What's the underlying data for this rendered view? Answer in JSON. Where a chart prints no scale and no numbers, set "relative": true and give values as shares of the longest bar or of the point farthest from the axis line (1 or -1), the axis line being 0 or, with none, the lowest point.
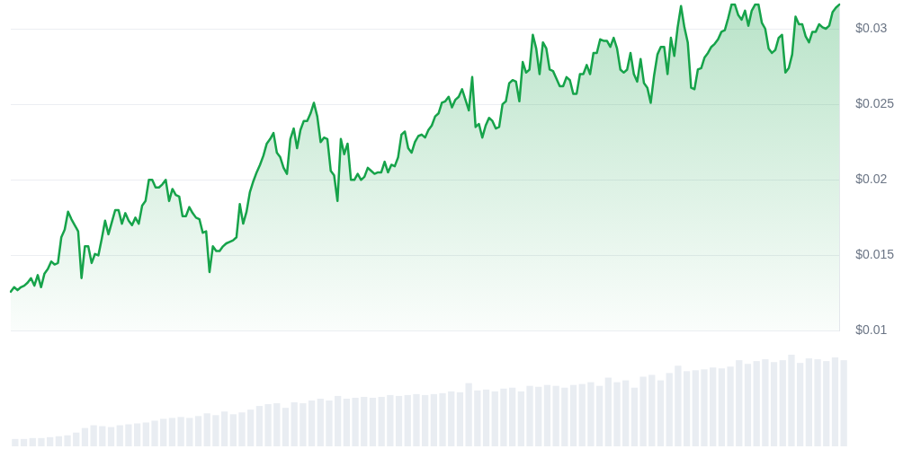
{
  "chart_data": [
    {
      "type": "area",
      "color": "#16a34a",
      "grid": "y",
      "tick_labels": "y",
      "marker": "none",
      "ylim": [
        0.01,
        0.0317
      ],
      "yticks": [
        {
          "value": 0.01,
          "label": "$0.01"
        },
        {
          "value": 0.015,
          "label": "$0.015"
        },
        {
          "value": 0.02,
          "label": "$0.02"
        },
        {
          "value": 0.025,
          "label": "$0.025"
        },
        {
          "value": 0.03,
          "label": "$0.03"
        }
      ],
      "categories": [
        null,
        null,
        null,
        null,
        null,
        null,
        null,
        null,
        null,
        null,
        null,
        null,
        null,
        null,
        null,
        null,
        null,
        null,
        null,
        null,
        null,
        null,
        null,
        null,
        null,
        null,
        null,
        null,
        null,
        null,
        null,
        null,
        null,
        null,
        null,
        null,
        null,
        null,
        null,
        null,
        null,
        null,
        null,
        null,
        null,
        null,
        null,
        null,
        null,
        null,
        null,
        null,
        null,
        null,
        null,
        null,
        null,
        null,
        null,
        null,
        null,
        null,
        null,
        null,
        null,
        null,
        null,
        null,
        null,
        null,
        null,
        null,
        null,
        null,
        null,
        null,
        null,
        null,
        null,
        null,
        null,
        null,
        null,
        null,
        null,
        null,
        null,
        null,
        null,
        null,
        null,
        null,
        null,
        null,
        null,
        null,
        null,
        null,
        null,
        null,
        null,
        null,
        null,
        null,
        null,
        null,
        null,
        null,
        null,
        null,
        null,
        null,
        null,
        null,
        null,
        null,
        null,
        null,
        null,
        null,
        null,
        null,
        null,
        null,
        null,
        null,
        null,
        null,
        null,
        null,
        null,
        null,
        null,
        null,
        null,
        null,
        null,
        null,
        null,
        null,
        null,
        null,
        null,
        null,
        null,
        null,
        null,
        null,
        null,
        null,
        null,
        null,
        null,
        null,
        null,
        null,
        null,
        null,
        null,
        null,
        null,
        null,
        null,
        null,
        null,
        null,
        null,
        null,
        null,
        null,
        null,
        null,
        null,
        null,
        null,
        null,
        null,
        null,
        null,
        null,
        null,
        null,
        null,
        null,
        null,
        null,
        null,
        null,
        null,
        null,
        null,
        null,
        null,
        null,
        null,
        null,
        null,
        null,
        null,
        null,
        null,
        null,
        null,
        null,
        null,
        null,
        null,
        null,
        null,
        null,
        null,
        null,
        null,
        null,
        null,
        null,
        null,
        null,
        null,
        null,
        null,
        null,
        null,
        null,
        null,
        null,
        null,
        null,
        null,
        null,
        null,
        null,
        null,
        null,
        null,
        null,
        null,
        null,
        null,
        null,
        null,
        null,
        null,
        null,
        null,
        null,
        null
      ],
      "values": [
        0.0126,
        0.0129,
        0.0127,
        0.0129,
        0.013,
        0.0132,
        0.0135,
        0.013,
        0.0137,
        0.0129,
        0.0138,
        0.0141,
        0.0146,
        0.0144,
        0.0145,
        0.0162,
        0.0167,
        0.0179,
        0.0174,
        0.017,
        0.0166,
        0.0135,
        0.0156,
        0.0156,
        0.0145,
        0.0151,
        0.015,
        0.0161,
        0.0173,
        0.0164,
        0.0172,
        0.018,
        0.018,
        0.0171,
        0.0178,
        0.0173,
        0.017,
        0.0175,
        0.0171,
        0.0183,
        0.0186,
        0.02,
        0.02,
        0.0195,
        0.0195,
        0.0197,
        0.02,
        0.0186,
        0.0194,
        0.019,
        0.0189,
        0.0176,
        0.0176,
        0.0182,
        0.0178,
        0.0175,
        0.0174,
        0.0165,
        0.0166,
        0.0139,
        0.0156,
        0.0153,
        0.0153,
        0.0156,
        0.0158,
        0.0159,
        0.016,
        0.0162,
        0.0184,
        0.0171,
        0.0179,
        0.0192,
        0.0199,
        0.0205,
        0.021,
        0.0216,
        0.0224,
        0.0227,
        0.0231,
        0.0218,
        0.0215,
        0.0208,
        0.0204,
        0.0227,
        0.0234,
        0.0221,
        0.0233,
        0.0239,
        0.0239,
        0.0244,
        0.0251,
        0.0242,
        0.0225,
        0.0228,
        0.0227,
        0.0206,
        0.0203,
        0.0186,
        0.0227,
        0.0217,
        0.0224,
        0.02,
        0.02,
        0.0204,
        0.02,
        0.0202,
        0.0208,
        0.0206,
        0.0204,
        0.0205,
        0.0205,
        0.0212,
        0.0205,
        0.021,
        0.0209,
        0.0215,
        0.023,
        0.0232,
        0.0221,
        0.0218,
        0.0225,
        0.0229,
        0.023,
        0.0228,
        0.0233,
        0.0236,
        0.0242,
        0.0244,
        0.0251,
        0.0252,
        0.0255,
        0.0248,
        0.0253,
        0.0255,
        0.026,
        0.0253,
        0.0246,
        0.0268,
        0.0235,
        0.0237,
        0.0228,
        0.0236,
        0.0241,
        0.0239,
        0.0234,
        0.0235,
        0.025,
        0.0252,
        0.0264,
        0.0266,
        0.0265,
        0.0252,
        0.0278,
        0.0271,
        0.0273,
        0.0296,
        0.0287,
        0.027,
        0.0291,
        0.0287,
        0.0273,
        0.0272,
        0.0267,
        0.0262,
        0.0262,
        0.0268,
        0.0266,
        0.0257,
        0.0257,
        0.027,
        0.027,
        0.0276,
        0.027,
        0.0284,
        0.0284,
        0.0293,
        0.0292,
        0.0292,
        0.0288,
        0.0294,
        0.0287,
        0.0273,
        0.0271,
        0.0273,
        0.0284,
        0.027,
        0.0265,
        0.028,
        0.0264,
        0.0261,
        0.0251,
        0.0269,
        0.0283,
        0.0288,
        0.0288,
        0.027,
        0.0294,
        0.0282,
        0.0301,
        0.0315,
        0.0301,
        0.0291,
        0.0261,
        0.026,
        0.0273,
        0.0274,
        0.0281,
        0.0284,
        0.0288,
        0.029,
        0.0293,
        0.0298,
        0.0299,
        0.0307,
        0.0316,
        0.0316,
        0.0309,
        0.0306,
        0.0312,
        0.0302,
        0.0312,
        0.0316,
        0.0316,
        0.0304,
        0.03,
        0.0287,
        0.0284,
        0.0286,
        0.0294,
        0.0296,
        0.0271,
        0.0274,
        0.0283,
        0.0308,
        0.0303,
        0.0303,
        0.0295,
        0.0291,
        0.0298,
        0.0298,
        0.0303,
        0.0301,
        0.03,
        0.0302,
        0.0311,
        0.0314,
        0.0316
      ]
    },
    {
      "type": "bar",
      "relative": true,
      "color": "#e9edf2",
      "tick_labels": false,
      "categories": [
        null,
        null,
        null,
        null,
        null,
        null,
        null,
        null,
        null,
        null,
        null,
        null,
        null,
        null,
        null,
        null,
        null,
        null,
        null,
        null,
        null,
        null,
        null,
        null,
        null,
        null,
        null,
        null,
        null,
        null,
        null,
        null,
        null,
        null,
        null,
        null,
        null,
        null,
        null,
        null,
        null,
        null,
        null,
        null,
        null,
        null,
        null,
        null,
        null,
        null,
        null,
        null,
        null,
        null,
        null,
        null,
        null,
        null,
        null,
        null,
        null,
        null,
        null,
        null,
        null,
        null,
        null,
        null,
        null,
        null,
        null,
        null,
        null,
        null,
        null,
        null,
        null,
        null,
        null,
        null,
        null,
        null,
        null,
        null,
        null,
        null,
        null,
        null,
        null,
        null,
        null,
        null,
        null,
        null,
        null,
        null
      ],
      "values": [
        0.08,
        0.08,
        0.09,
        0.09,
        0.1,
        0.11,
        0.12,
        0.15,
        0.2,
        0.23,
        0.22,
        0.21,
        0.23,
        0.24,
        0.25,
        0.26,
        0.28,
        0.3,
        0.31,
        0.32,
        0.31,
        0.33,
        0.36,
        0.34,
        0.38,
        0.35,
        0.37,
        0.4,
        0.44,
        0.46,
        0.47,
        0.42,
        0.48,
        0.47,
        0.5,
        0.52,
        0.5,
        0.55,
        0.52,
        0.53,
        0.54,
        0.53,
        0.54,
        0.56,
        0.55,
        0.56,
        0.57,
        0.56,
        0.57,
        0.58,
        0.6,
        0.59,
        0.69,
        0.61,
        0.62,
        0.6,
        0.63,
        0.64,
        0.6,
        0.66,
        0.65,
        0.67,
        0.66,
        0.64,
        0.67,
        0.68,
        0.7,
        0.66,
        0.75,
        0.7,
        0.72,
        0.64,
        0.76,
        0.78,
        0.72,
        0.8,
        0.88,
        0.82,
        0.83,
        0.84,
        0.86,
        0.85,
        0.87,
        0.94,
        0.9,
        0.93,
        0.95,
        0.92,
        0.94,
        1.0,
        0.91,
        0.96,
        0.95,
        0.93,
        0.97,
        0.94
      ]
    }
  ]
}
